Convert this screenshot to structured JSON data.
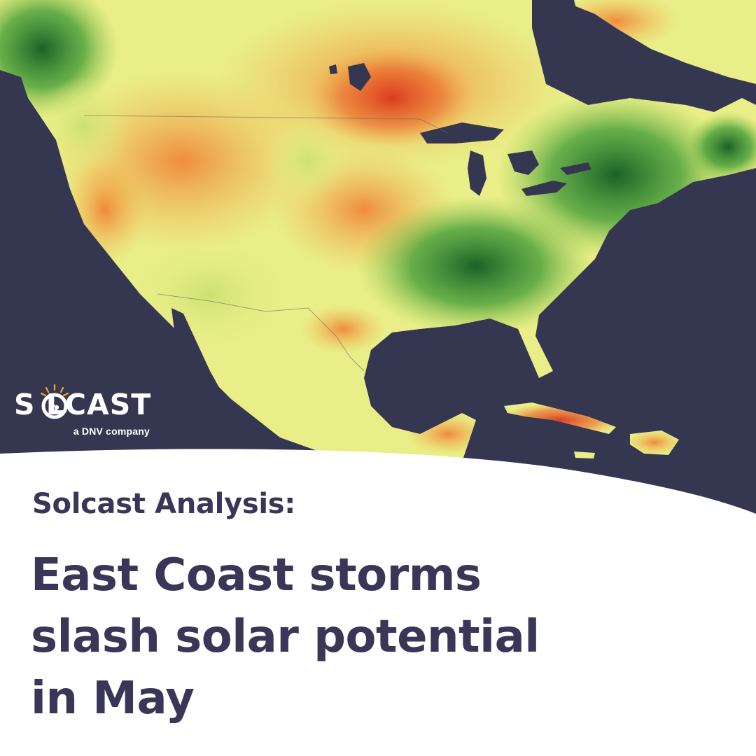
{
  "brand": {
    "logo_text": "S LCAST",
    "logo_text_full": "SOLCAST",
    "tagline": "a DNV company"
  },
  "post": {
    "subtitle": "Solcast Analysis:",
    "headline_lines": [
      "East Coast storms",
      "slash solar potential",
      "in May"
    ]
  },
  "map": {
    "region": "North America and the Caribbean",
    "colors": {
      "ocean": "#353750",
      "low_irradiance": "#1f7a2e",
      "mid_irradiance": "#f2f08a",
      "high_irradiance": "#e0452a"
    }
  },
  "colors": {
    "text": "#3a3658",
    "background": "#ffffff",
    "logo_accent": "#f5a623"
  }
}
